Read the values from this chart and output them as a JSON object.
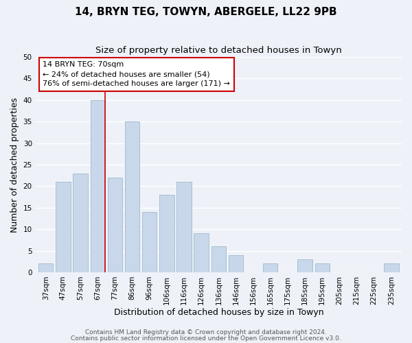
{
  "title": "14, BRYN TEG, TOWYN, ABERGELE, LL22 9PB",
  "subtitle": "Size of property relative to detached houses in Towyn",
  "xlabel": "Distribution of detached houses by size in Towyn",
  "ylabel": "Number of detached properties",
  "bar_labels": [
    "37sqm",
    "47sqm",
    "57sqm",
    "67sqm",
    "77sqm",
    "86sqm",
    "96sqm",
    "106sqm",
    "116sqm",
    "126sqm",
    "136sqm",
    "146sqm",
    "156sqm",
    "165sqm",
    "175sqm",
    "185sqm",
    "195sqm",
    "205sqm",
    "215sqm",
    "225sqm",
    "235sqm"
  ],
  "bar_values": [
    2,
    21,
    23,
    40,
    22,
    35,
    14,
    18,
    21,
    9,
    6,
    4,
    0,
    2,
    0,
    3,
    2,
    0,
    0,
    0,
    2
  ],
  "bar_color": "#c8d8ea",
  "bar_edge_color": "#a0b8cc",
  "vline_x_index": 3,
  "vline_color": "#cc0000",
  "annotation_line1": "14 BRYN TEG: 70sqm",
  "annotation_line2": "← 24% of detached houses are smaller (54)",
  "annotation_line3": "76% of semi-detached houses are larger (171) →",
  "ylim": [
    0,
    50
  ],
  "yticks": [
    0,
    5,
    10,
    15,
    20,
    25,
    30,
    35,
    40,
    45,
    50
  ],
  "footer1": "Contains HM Land Registry data © Crown copyright and database right 2024.",
  "footer2": "Contains public sector information licensed under the Open Government Licence v3.0.",
  "bg_color": "#eef2f8",
  "grid_color": "#ffffff",
  "title_fontsize": 11,
  "subtitle_fontsize": 9.5,
  "axis_label_fontsize": 9,
  "tick_fontsize": 7.5,
  "footer_fontsize": 6.5
}
